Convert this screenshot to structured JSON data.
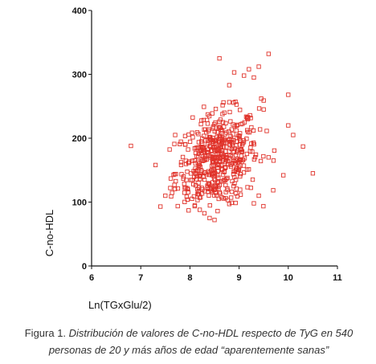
{
  "chart_data": {
    "type": "scatter",
    "xlabel": "Ln(TGxGlu/2)",
    "ylabel": "C-no-HDL",
    "xlim": [
      6,
      11
    ],
    "ylim": [
      0,
      400
    ],
    "x_ticks": [
      "6",
      "7",
      "8",
      "9",
      "10",
      "11"
    ],
    "y_ticks": [
      "0",
      "100",
      "200",
      "300",
      "400"
    ],
    "grid": false,
    "marker": "hollow-square",
    "marker_color": "#e0322a",
    "n": 540,
    "points": [
      [
        6.8,
        188
      ],
      [
        7.3,
        158
      ],
      [
        7.4,
        93
      ],
      [
        7.5,
        110
      ],
      [
        7.6,
        122
      ],
      [
        7.7,
        205
      ],
      [
        8.4,
        75
      ],
      [
        8.5,
        72
      ],
      [
        8.6,
        325
      ],
      [
        8.7,
        240
      ],
      [
        8.8,
        283
      ],
      [
        8.9,
        303
      ],
      [
        9.1,
        298
      ],
      [
        9.2,
        308
      ],
      [
        9.3,
        295
      ],
      [
        9.4,
        312
      ],
      [
        9.45,
        262
      ],
      [
        9.5,
        259
      ],
      [
        9.5,
        245
      ],
      [
        9.6,
        332
      ],
      [
        9.6,
        170
      ],
      [
        9.4,
        110
      ],
      [
        10.0,
        268
      ],
      [
        10.0,
        220
      ],
      [
        10.1,
        205
      ],
      [
        10.3,
        187
      ],
      [
        10.5,
        145
      ],
      [
        9.9,
        142
      ],
      [
        9.7,
        165
      ],
      [
        9.3,
        98
      ],
      [
        8.8,
        97
      ],
      [
        8.1,
        95
      ],
      [
        8.2,
        88
      ]
    ]
  },
  "caption": {
    "lead": "Figura 1. ",
    "rest": "Distribución de valores de C-no-HDL respecto de TyG en 540 personas de 20 y más años de edad “aparentemente sanas”"
  }
}
